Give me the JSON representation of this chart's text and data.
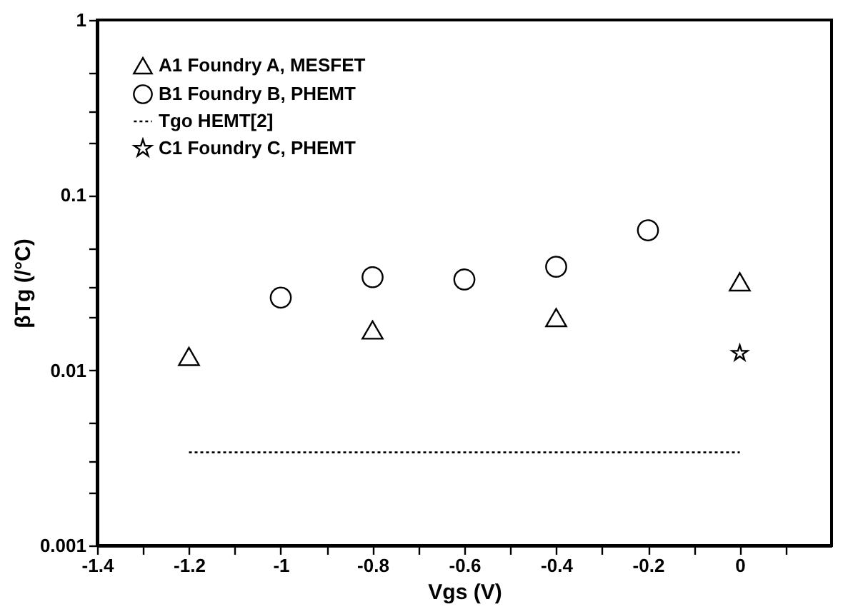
{
  "chart_data": {
    "type": "scatter",
    "xlabel": "Vgs (V)",
    "ylabel": "βTg (/°C)",
    "log": "y",
    "grid": false,
    "legend": "top left",
    "xlim": [
      -1.4,
      0.2
    ],
    "ylim": [
      0.001,
      1
    ],
    "xticks": [
      -1.4,
      {
        "value": -1.3,
        "label": null
      },
      -1.2,
      {
        "value": -1.1,
        "label": null
      },
      -1,
      {
        "value": -0.9,
        "label": null
      },
      -0.8,
      {
        "value": -0.7,
        "label": null
      },
      -0.6,
      {
        "value": -0.5,
        "label": null
      },
      -0.4,
      {
        "value": -0.3,
        "label": null
      },
      -0.2,
      {
        "value": -0.1,
        "label": null
      },
      0,
      {
        "value": 0.1,
        "label": null
      }
    ],
    "yticks": [
      0.001,
      {
        "value": 0.002,
        "label": null
      },
      {
        "value": 0.003,
        "label": null
      },
      {
        "value": 0.005,
        "label": null
      },
      0.01,
      {
        "value": 0.02,
        "label": null
      },
      {
        "value": 0.03,
        "label": null
      },
      {
        "value": 0.05,
        "label": null
      },
      0.1,
      {
        "value": 0.2,
        "label": null
      },
      {
        "value": 0.3,
        "label": null
      },
      {
        "value": 0.5,
        "label": null
      },
      1
    ],
    "series": [
      {
        "name": "A1 Foundry A, MESFET",
        "marker": "triangle",
        "color": "#000000",
        "x": [
          -1.2,
          -0.8,
          -0.4,
          0
        ],
        "values": [
          0.012,
          0.017,
          0.02,
          0.032
        ]
      },
      {
        "name": "B1 Foundry B, PHEMT",
        "marker": "circle",
        "color": "#000000",
        "x": [
          -1,
          -0.8,
          -0.6,
          -0.4,
          -0.2
        ],
        "values": [
          0.026,
          0.034,
          0.033,
          0.039,
          0.063
        ]
      },
      {
        "name": "Tgo HEMT[2]",
        "type": "line",
        "line_style": "dotted",
        "marker": "none",
        "color": "#000000",
        "x": [
          -1.2,
          0
        ],
        "values": [
          0.0034,
          0.0034
        ]
      },
      {
        "name": "C1 Foundry C, PHEMT",
        "marker": "star",
        "color": "#000000",
        "x": [
          0
        ],
        "values": [
          0.0125
        ]
      }
    ]
  }
}
